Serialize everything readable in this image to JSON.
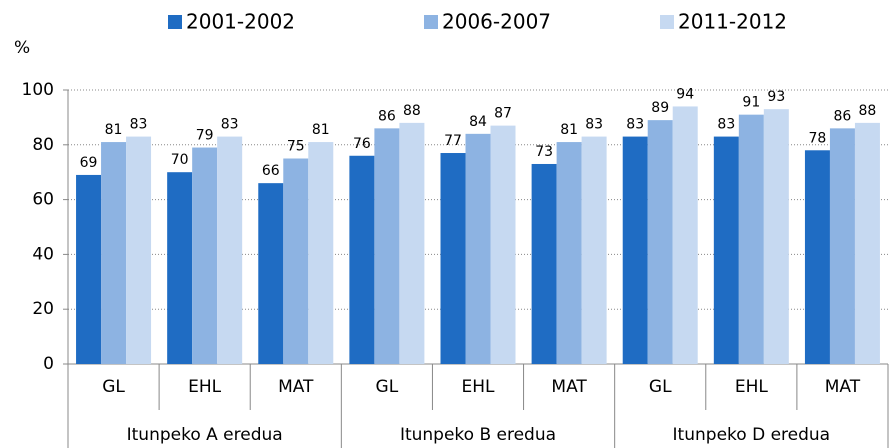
{
  "chart_data": {
    "type": "bar",
    "ylabel": "%",
    "groups": [
      {
        "name": "Itunpeko A eredua",
        "categories": [
          "GL",
          "EHL",
          "MAT"
        ]
      },
      {
        "name": "Itunpeko B eredua",
        "categories": [
          "GL",
          "EHL",
          "MAT"
        ]
      },
      {
        "name": "Itunpeko D eredua",
        "categories": [
          "GL",
          "EHL",
          "MAT"
        ]
      }
    ],
    "series": [
      {
        "name": "2001-2002",
        "color": "#1f6cc3",
        "values": [
          69,
          70,
          66,
          76,
          77,
          73,
          83,
          83,
          78
        ]
      },
      {
        "name": "2006-2007",
        "color": "#8db3e2",
        "values": [
          81,
          79,
          75,
          86,
          84,
          81,
          89,
          91,
          86
        ]
      },
      {
        "name": "2011-2012",
        "color": "#c6d9f1",
        "values": [
          83,
          83,
          81,
          88,
          87,
          83,
          94,
          93,
          88
        ]
      }
    ],
    "ylim": [
      0,
      100
    ],
    "yticks": [
      0,
      20,
      40,
      60,
      80,
      100
    ],
    "grid": true,
    "legend": "top"
  }
}
